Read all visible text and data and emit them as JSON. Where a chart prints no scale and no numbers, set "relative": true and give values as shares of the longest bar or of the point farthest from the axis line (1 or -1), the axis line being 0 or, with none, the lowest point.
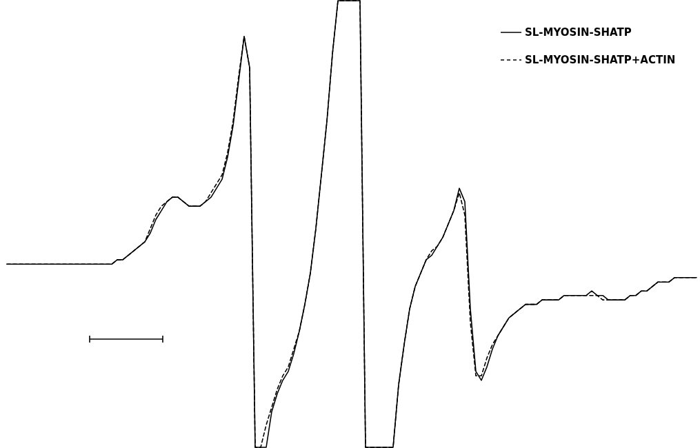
{
  "chart_data": {
    "type": "line",
    "relative": true,
    "legend": "top right",
    "categories": [
      null,
      null,
      null,
      null,
      null,
      null,
      null,
      null,
      null,
      null,
      null,
      null,
      null,
      null,
      null,
      null,
      null,
      null,
      null,
      null,
      null,
      null,
      null,
      null,
      null,
      null,
      null,
      null,
      null,
      null,
      null,
      null,
      null,
      null,
      null,
      null,
      null,
      null,
      null,
      null,
      null,
      null,
      null,
      null,
      null,
      null,
      null,
      null,
      null,
      null,
      null,
      null,
      null,
      null,
      null,
      null,
      null,
      null,
      null,
      null,
      null,
      null,
      null,
      null,
      null,
      null,
      null,
      null,
      null,
      null,
      null,
      null,
      null,
      null,
      null,
      null,
      null,
      null,
      null,
      null,
      null,
      null,
      null,
      null,
      null,
      null,
      null,
      null,
      null,
      null,
      null,
      null,
      null,
      null,
      null,
      null,
      null,
      null,
      null,
      null,
      null,
      null,
      null,
      null,
      null,
      null,
      null,
      null,
      null,
      null,
      null,
      null,
      null,
      null,
      null,
      null,
      null,
      null,
      null,
      null,
      null,
      null,
      null,
      null,
      null,
      null
    ],
    "series": [
      {
        "name": "SL-MYOSIN-SHATP",
        "color": "#000000",
        "line_style": "solid",
        "values": [
          0.41,
          0.41,
          0.41,
          0.41,
          0.41,
          0.41,
          0.41,
          0.41,
          0.41,
          0.41,
          0.41,
          0.41,
          0.41,
          0.41,
          0.41,
          0.41,
          0.41,
          0.41,
          0.41,
          0.41,
          0.42,
          0.42,
          0.43,
          0.44,
          0.45,
          0.46,
          0.48,
          0.51,
          0.53,
          0.55,
          0.56,
          0.56,
          0.55,
          0.54,
          0.54,
          0.54,
          0.55,
          0.56,
          0.58,
          0.6,
          0.65,
          0.72,
          0.82,
          0.92,
          0.85,
          0,
          0,
          0,
          0.08,
          0.12,
          0.15,
          0.17,
          0.21,
          0.26,
          0.32,
          0.39,
          0.49,
          0.61,
          0.73,
          0.88,
          1,
          1,
          1,
          1,
          1,
          0,
          0,
          0,
          0,
          0,
          0,
          0.14,
          0.23,
          0.31,
          0.36,
          0.39,
          0.42,
          0.43,
          0.45,
          0.47,
          0.5,
          0.53,
          0.58,
          0.55,
          0.31,
          0.17,
          0.15,
          0.18,
          0.22,
          0.25,
          0.27,
          0.29,
          0.3,
          0.31,
          0.32,
          0.32,
          0.32,
          0.33,
          0.33,
          0.33,
          0.33,
          0.34,
          0.34,
          0.34,
          0.34,
          0.34,
          0.35,
          0.34,
          0.34,
          0.33,
          0.33,
          0.33,
          0.33,
          0.34,
          0.34,
          0.35,
          0.35,
          0.36,
          0.37,
          0.37,
          0.37,
          0.38,
          0.38,
          0.38,
          0.38,
          0.38
        ]
      },
      {
        "name": "SL-MYOSIN-SHATP+ACTIN",
        "color": "#000000",
        "line_style": "dashed",
        "values": [
          0.41,
          0.41,
          0.41,
          0.41,
          0.41,
          0.41,
          0.41,
          0.41,
          0.41,
          0.41,
          0.41,
          0.41,
          0.41,
          0.41,
          0.41,
          0.41,
          0.41,
          0.41,
          0.41,
          0.41,
          0.42,
          0.42,
          0.43,
          0.44,
          0.45,
          0.46,
          0.49,
          0.52,
          0.54,
          0.55,
          0.56,
          0.56,
          0.55,
          0.54,
          0.54,
          0.54,
          0.55,
          0.57,
          0.59,
          0.61,
          0.66,
          0.73,
          0.83,
          0.92,
          0.85,
          0,
          0,
          0.05,
          0.09,
          0.13,
          0.16,
          0.18,
          0.22,
          0.26,
          0.32,
          0.39,
          0.49,
          0.61,
          0.73,
          0.88,
          1,
          1,
          1,
          1,
          1,
          0,
          0,
          0,
          0,
          0,
          0,
          0.14,
          0.23,
          0.31,
          0.36,
          0.39,
          0.42,
          0.44,
          0.45,
          0.47,
          0.5,
          0.53,
          0.57,
          0.52,
          0.28,
          0.16,
          0.16,
          0.2,
          0.23,
          0.25,
          0.27,
          0.29,
          0.3,
          0.31,
          0.32,
          0.32,
          0.32,
          0.33,
          0.33,
          0.33,
          0.33,
          0.34,
          0.34,
          0.34,
          0.34,
          0.34,
          0.34,
          0.34,
          0.33,
          0.33,
          0.33,
          0.33,
          0.33,
          0.34,
          0.34,
          0.35,
          0.35,
          0.36,
          0.37,
          0.37,
          0.37,
          0.38,
          0.38,
          0.38,
          0.38,
          0.38
        ]
      }
    ]
  }
}
